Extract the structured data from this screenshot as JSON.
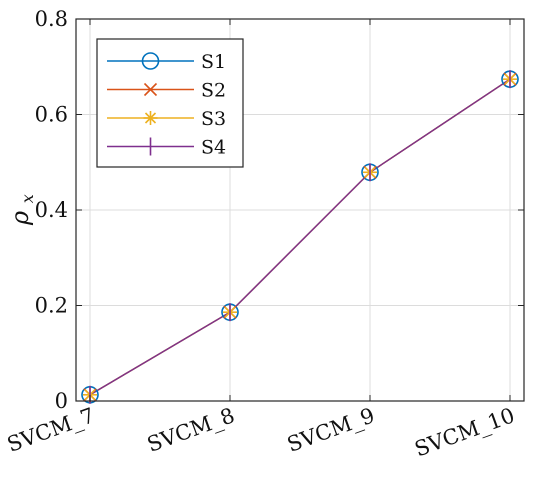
{
  "chart_data": {
    "type": "line",
    "categories": [
      "SVCM_7",
      "SVCM_8",
      "SVCM_9",
      "SVCM_10"
    ],
    "series": [
      {
        "name": "S1",
        "values": [
          0.013,
          0.186,
          0.479,
          0.674
        ],
        "color": "#0072BD",
        "marker": "circle"
      },
      {
        "name": "S2",
        "values": [
          0.013,
          0.186,
          0.479,
          0.674
        ],
        "color": "#D95319",
        "marker": "x"
      },
      {
        "name": "S3",
        "values": [
          0.013,
          0.186,
          0.479,
          0.674
        ],
        "color": "#EDB120",
        "marker": "asterisk"
      },
      {
        "name": "S4",
        "values": [
          0.013,
          0.186,
          0.479,
          0.674
        ],
        "color": "#7E2F8E",
        "marker": "plus-vertical"
      }
    ],
    "title": "",
    "xlabel": "",
    "ylabel": {
      "base": "ρ",
      "subscript": "x"
    },
    "ylim": [
      0,
      0.8
    ],
    "yticks": [
      "0",
      "0.2",
      "0.4",
      "0.6",
      "0.8"
    ],
    "grid": true,
    "legend_position": "top-left",
    "box": true
  }
}
